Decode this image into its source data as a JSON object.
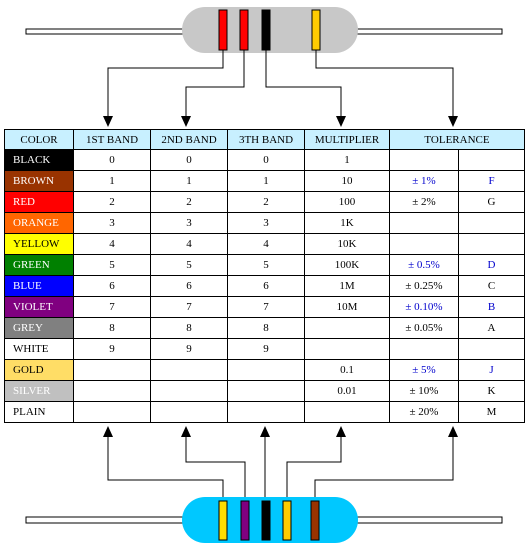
{
  "colors": {
    "header_bg": "#c8f0ff",
    "top_resistor_body": "#c8c8c8",
    "bottom_resistor_body": "#00c8ff",
    "arrow": "#000000"
  },
  "top_resistor": {
    "bands": [
      "#ff0000",
      "#ff0000",
      "#000000",
      "#ffcc00"
    ]
  },
  "bottom_resistor": {
    "bands": [
      "#ffdd00",
      "#800080",
      "#000000",
      "#ffcc00",
      "#993300"
    ]
  },
  "table": {
    "headers": {
      "color": "COLOR",
      "band1": "1ST BAND",
      "band2": "2ND BAND",
      "band3": "3TH BAND",
      "multiplier": "MULTIPLIER",
      "tolerance": "TOLERANCE"
    },
    "rows": [
      {
        "name": "BLACK",
        "bg": "#000000",
        "fg": "#ffffff",
        "b1": "0",
        "b2": "0",
        "b3": "0",
        "mult": "1",
        "tol": "",
        "code": ""
      },
      {
        "name": "BROWN",
        "bg": "#993300",
        "fg": "#ffffff",
        "b1": "1",
        "b2": "1",
        "b3": "1",
        "mult": "10",
        "tol": "± 1%",
        "code": "F",
        "blue": true
      },
      {
        "name": "RED",
        "bg": "#ff0000",
        "fg": "#ffffff",
        "b1": "2",
        "b2": "2",
        "b3": "2",
        "mult": "100",
        "tol": "± 2%",
        "code": "G"
      },
      {
        "name": "ORANGE",
        "bg": "#ff6600",
        "fg": "#ffffff",
        "b1": "3",
        "b2": "3",
        "b3": "3",
        "mult": "1K",
        "tol": "",
        "code": ""
      },
      {
        "name": "YELLOW",
        "bg": "#ffff00",
        "fg": "#000000",
        "b1": "4",
        "b2": "4",
        "b3": "4",
        "mult": "10K",
        "tol": "",
        "code": ""
      },
      {
        "name": "GREEN",
        "bg": "#008000",
        "fg": "#ffffff",
        "b1": "5",
        "b2": "5",
        "b3": "5",
        "mult": "100K",
        "tol": "± 0.5%",
        "code": "D",
        "blue": true
      },
      {
        "name": "BLUE",
        "bg": "#0000ff",
        "fg": "#ffffff",
        "b1": "6",
        "b2": "6",
        "b3": "6",
        "mult": "1M",
        "tol": "± 0.25%",
        "code": "C"
      },
      {
        "name": "VIOLET",
        "bg": "#800080",
        "fg": "#ffffff",
        "b1": "7",
        "b2": "7",
        "b3": "7",
        "mult": "10M",
        "tol": "± 0.10%",
        "code": "B",
        "blue": true
      },
      {
        "name": "GREY",
        "bg": "#808080",
        "fg": "#ffffff",
        "b1": "8",
        "b2": "8",
        "b3": "8",
        "mult": "",
        "tol": "± 0.05%",
        "code": "A"
      },
      {
        "name": "WHITE",
        "bg": "#ffffff",
        "fg": "#000000",
        "b1": "9",
        "b2": "9",
        "b3": "9",
        "mult": "",
        "tol": "",
        "code": ""
      },
      {
        "name": "GOLD",
        "bg": "#ffdd66",
        "fg": "#000000",
        "b1": "",
        "b2": "",
        "b3": "",
        "mult": "0.1",
        "tol": "± 5%",
        "code": "J",
        "blue": true
      },
      {
        "name": "SILVER",
        "bg": "#c0c0c0",
        "fg": "#ffffff",
        "b1": "",
        "b2": "",
        "b3": "",
        "mult": "0.01",
        "tol": "± 10%",
        "code": "K"
      },
      {
        "name": "PLAIN",
        "bg": "#ffffff",
        "fg": "#000000",
        "b1": "",
        "b2": "",
        "b3": "",
        "mult": "",
        "tol": "± 20%",
        "code": "M"
      }
    ]
  }
}
